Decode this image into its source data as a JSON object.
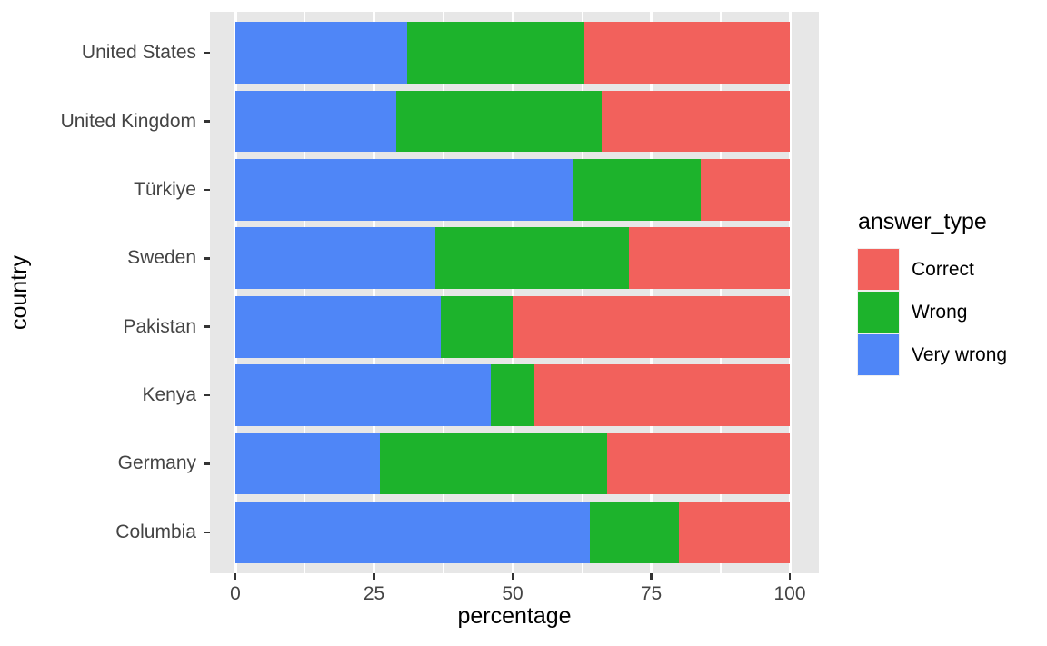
{
  "chart_data": {
    "type": "bar",
    "orientation": "horizontal",
    "stacked": true,
    "title": "",
    "xlabel": "percentage",
    "ylabel": "country",
    "xlim": [
      0,
      100
    ],
    "x_ticks": [
      0,
      25,
      50,
      75,
      100
    ],
    "x_tick_labels": [
      "0",
      "25",
      "50",
      "75",
      "100"
    ],
    "x_minor_gridlines": [
      12.5,
      37.5,
      62.5,
      87.5
    ],
    "grid": true,
    "panel_background": "#E7E7E7",
    "categories": [
      "United States",
      "United Kingdom",
      "Türkiye",
      "Sweden",
      "Pakistan",
      "Kenya",
      "Germany",
      "Columbia"
    ],
    "series": [
      {
        "name": "Very wrong",
        "color": "#4F86F7",
        "values": [
          31,
          29,
          61,
          36,
          37,
          46,
          26,
          64
        ]
      },
      {
        "name": "Wrong",
        "color": "#1DB32C",
        "values": [
          32,
          37,
          23,
          35,
          13,
          8,
          41,
          16
        ]
      },
      {
        "name": "Correct",
        "color": "#F2615C",
        "values": [
          37,
          34,
          16,
          29,
          50,
          46,
          33,
          20
        ]
      }
    ],
    "legend": {
      "title": "answer_type",
      "position": "right",
      "entries": [
        {
          "label": "Correct",
          "color": "#F2615C"
        },
        {
          "label": "Wrong",
          "color": "#1DB32C"
        },
        {
          "label": "Very wrong",
          "color": "#4F86F7"
        }
      ]
    }
  }
}
